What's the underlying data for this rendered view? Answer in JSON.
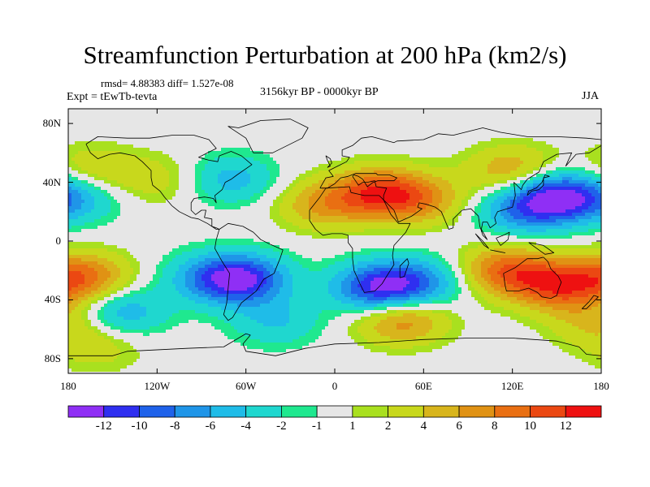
{
  "figure": {
    "title": "Streamfunction Perturbation at 200 hPa (km2/s)",
    "stats_text": "rmsd= 4.88383 diff= 1.527e-08",
    "left_label": "Expt = tEwTb-tevta",
    "center_label": "3156kyr BP - 0000kyr BP",
    "right_label": "JJA"
  },
  "map": {
    "projection": "cylindrical-equidistant",
    "lon_range": [
      -180,
      180
    ],
    "lat_range": [
      -90,
      90
    ],
    "lat_ticks": [
      {
        "value": 80,
        "label": "80N"
      },
      {
        "value": 40,
        "label": "40N"
      },
      {
        "value": 0,
        "label": "0"
      },
      {
        "value": -40,
        "label": "40S"
      },
      {
        "value": -80,
        "label": "80S"
      }
    ],
    "lon_ticks": [
      {
        "value": -180,
        "label": "180"
      },
      {
        "value": -120,
        "label": "120W"
      },
      {
        "value": -60,
        "label": "60W"
      },
      {
        "value": 0,
        "label": "0"
      },
      {
        "value": 60,
        "label": "60E"
      },
      {
        "value": 120,
        "label": "120E"
      },
      {
        "value": 180,
        "label": "180"
      }
    ],
    "anomalies": [
      {
        "lon": 30,
        "lat": 33,
        "value": 10
      },
      {
        "lon": -8,
        "lat": 25,
        "value": 6
      },
      {
        "lon": 58,
        "lat": 28,
        "value": 6
      },
      {
        "lon": 120,
        "lat": 48,
        "value": 6
      },
      {
        "lon": 150,
        "lat": 30,
        "value": -12
      },
      {
        "lon": 125,
        "lat": 20,
        "value": -6
      },
      {
        "lon": -70,
        "lat": 42,
        "value": -5
      },
      {
        "lon": -120,
        "lat": 42,
        "value": 3
      },
      {
        "lon": -165,
        "lat": 48,
        "value": 4
      },
      {
        "lon": -175,
        "lat": 30,
        "value": -5
      },
      {
        "lon": -170,
        "lat": -25,
        "value": 9
      },
      {
        "lon": -145,
        "lat": -48,
        "value": -6
      },
      {
        "lon": -160,
        "lat": -72,
        "value": 3
      },
      {
        "lon": -62,
        "lat": -26,
        "value": -11
      },
      {
        "lon": -85,
        "lat": -25,
        "value": -5
      },
      {
        "lon": -40,
        "lat": -55,
        "value": -4
      },
      {
        "lon": 30,
        "lat": -32,
        "value": -12
      },
      {
        "lon": 60,
        "lat": -28,
        "value": -6
      },
      {
        "lon": 45,
        "lat": -53,
        "value": 8
      },
      {
        "lon": 115,
        "lat": -20,
        "value": 9
      },
      {
        "lon": 150,
        "lat": -30,
        "value": 10
      },
      {
        "lon": 175,
        "lat": -55,
        "value": 4
      }
    ]
  },
  "colorbar": {
    "colors": [
      "#8f2ff5",
      "#2f2ff0",
      "#1f62ea",
      "#1f95e8",
      "#1fbce8",
      "#1fd7cf",
      "#1fe88f",
      "#e6e6e6",
      "#a9e01f",
      "#c8d81c",
      "#d8b51c",
      "#e09214",
      "#e96f12",
      "#eb4812",
      "#ee1111"
    ],
    "bounds": [
      -13,
      -12,
      -10,
      -8,
      -6,
      -4,
      -2,
      -1,
      1,
      2,
      4,
      6,
      8,
      10,
      12,
      13
    ],
    "labels": [
      "-12",
      "-10",
      "-8",
      "-6",
      "-4",
      "-2",
      "-1",
      "1",
      "2",
      "4",
      "6",
      "8",
      "10",
      "12"
    ]
  }
}
